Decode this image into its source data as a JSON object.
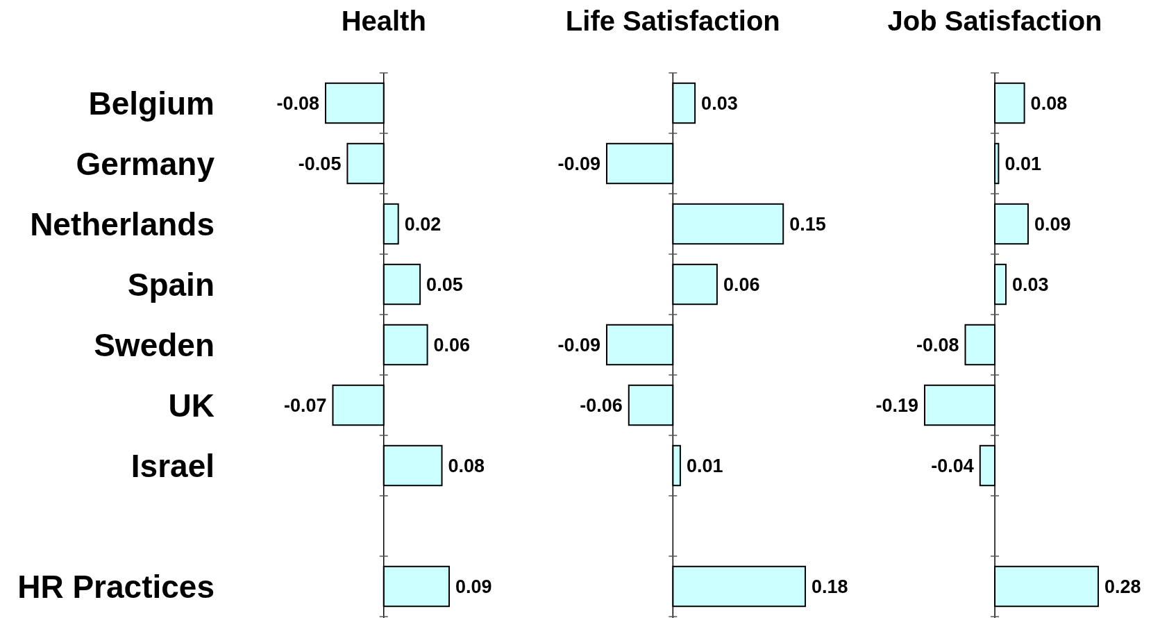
{
  "chart_data": [
    {
      "type": "bar",
      "orientation": "horizontal",
      "title": "Health",
      "categories": [
        "Belgium",
        "Germany",
        "Netherlands",
        "Spain",
        "Sweden",
        "UK",
        "Israel",
        null,
        "HR Practices"
      ],
      "values": [
        -0.08,
        -0.05,
        0.02,
        0.05,
        0.06,
        -0.07,
        0.08,
        null,
        0.09
      ],
      "color": "#ccffff",
      "data_labels": true,
      "tick_labels": "y"
    },
    {
      "type": "bar",
      "orientation": "horizontal",
      "title": "Life Satisfaction",
      "categories": [
        null,
        null,
        null,
        null,
        null,
        null,
        null,
        null,
        null
      ],
      "values": [
        0.03,
        -0.09,
        0.15,
        0.06,
        -0.09,
        -0.06,
        0.01,
        null,
        0.18
      ],
      "color": "#ccffff",
      "data_labels": true,
      "tick_labels": false
    },
    {
      "type": "bar",
      "orientation": "horizontal",
      "title": "Job Satisfaction",
      "categories": [
        null,
        null,
        null,
        null,
        null,
        null,
        null,
        null,
        null
      ],
      "values": [
        0.08,
        0.01,
        0.09,
        0.03,
        -0.08,
        -0.19,
        -0.04,
        null,
        0.28
      ],
      "color": "#ccffff",
      "data_labels": true,
      "tick_labels": false
    }
  ]
}
